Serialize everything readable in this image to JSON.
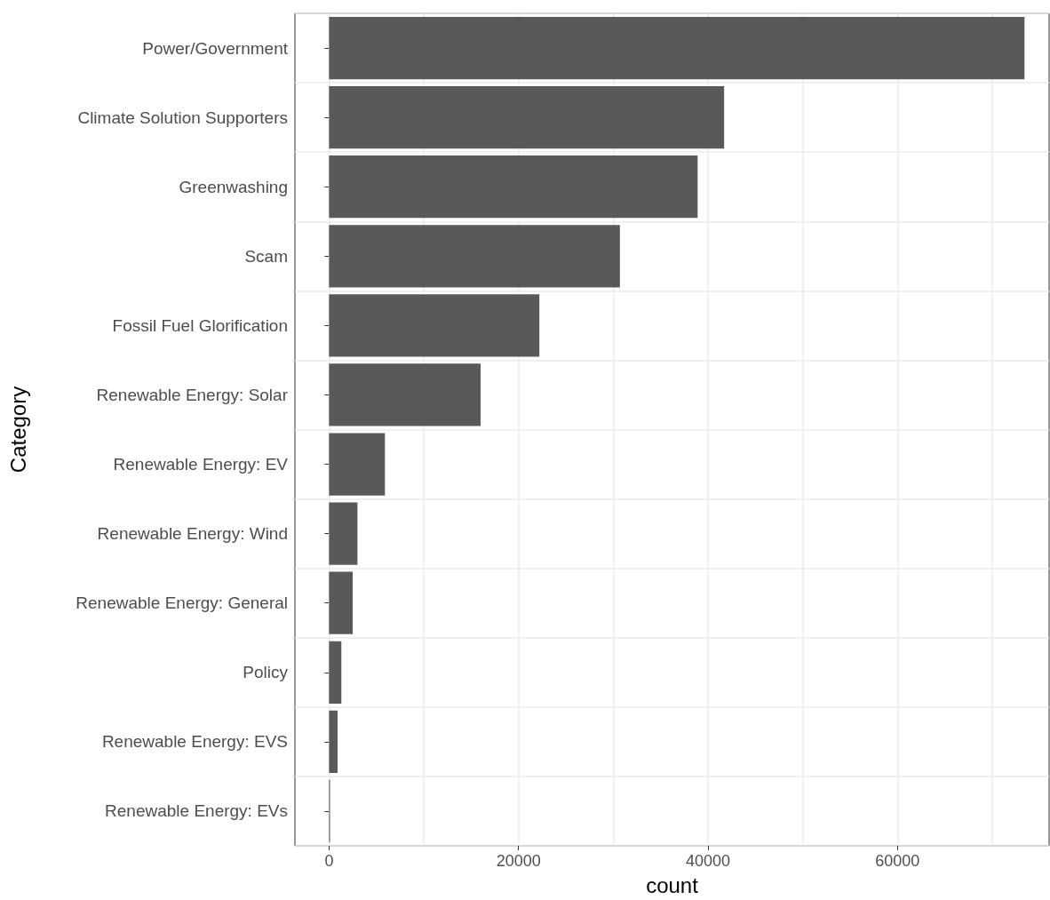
{
  "chart_data": {
    "type": "bar",
    "orientation": "horizontal",
    "xlabel": "count",
    "ylabel": "Category",
    "categories": [
      "Power/Government",
      "Climate Solution Supporters",
      "Greenwashing",
      "Scam",
      "Fossil Fuel Glorification",
      "Renewable Energy: Solar",
      "Renewable Energy: EV",
      "Renewable Energy: Wind",
      "Renewable Energy: General",
      "Policy",
      "Renewable Energy: EVS",
      "Renewable Energy: EVs"
    ],
    "values": [
      73400,
      41700,
      38900,
      30700,
      22200,
      16000,
      5900,
      3000,
      2500,
      1300,
      900,
      100
    ],
    "color": "#595959",
    "xlim": [
      -3600,
      76000
    ],
    "xticks": [
      0,
      {
        "value": 10000,
        "label": null
      },
      20000,
      {
        "value": 30000,
        "label": null
      },
      40000,
      {
        "value": 50000,
        "label": null
      },
      60000,
      {
        "value": 70000,
        "label": null
      }
    ],
    "grid": true
  }
}
